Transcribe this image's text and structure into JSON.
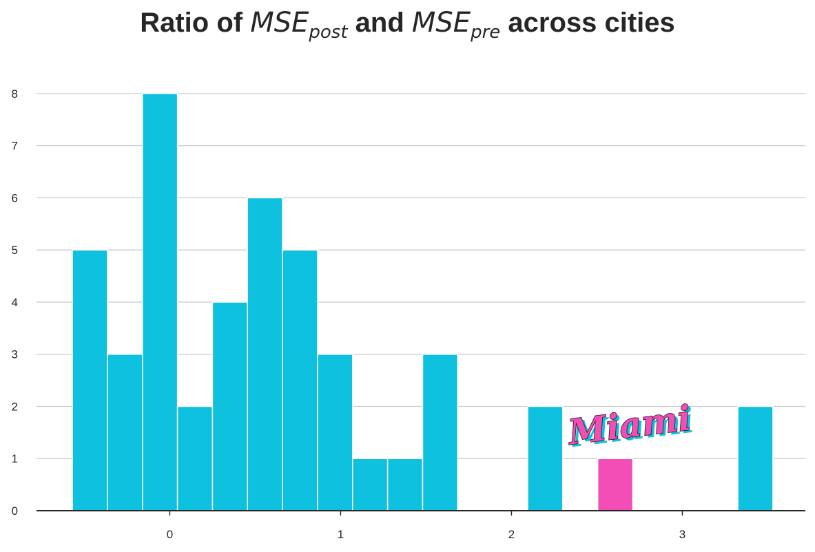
{
  "title": {
    "prefix": "Ratio of ",
    "mse1_base": "MSE",
    "mse1_sub": "post",
    "middle": " and ",
    "mse2_base": "MSE",
    "mse2_sub": "pre",
    "suffix": " across cities"
  },
  "chart_data": {
    "type": "bar",
    "title": "Ratio of MSE_post and MSE_pre across cities",
    "xlabel": "",
    "ylabel": "",
    "xlim": [
      -0.78,
      3.72
    ],
    "ylim": [
      0,
      8.5
    ],
    "xticks": [
      0,
      1,
      2,
      3
    ],
    "yticks": [
      0,
      1,
      2,
      3,
      4,
      5,
      6,
      7,
      8
    ],
    "grid": "horizontal",
    "bin_width": 0.205,
    "bins": [
      {
        "left": -0.57,
        "count": 5
      },
      {
        "left": -0.365,
        "count": 3
      },
      {
        "left": -0.16,
        "count": 8
      },
      {
        "left": 0.045,
        "count": 2
      },
      {
        "left": 0.25,
        "count": 4
      },
      {
        "left": 0.455,
        "count": 6
      },
      {
        "left": 0.66,
        "count": 5
      },
      {
        "left": 0.865,
        "count": 3
      },
      {
        "left": 1.07,
        "count": 1
      },
      {
        "left": 1.275,
        "count": 1
      },
      {
        "left": 1.48,
        "count": 3
      },
      {
        "left": 1.685,
        "count": 0
      },
      {
        "left": 1.89,
        "count": 0
      },
      {
        "left": 2.095,
        "count": 2
      },
      {
        "left": 2.3,
        "count": 0
      },
      {
        "left": 2.505,
        "count": 1,
        "highlight": true
      },
      {
        "left": 2.71,
        "count": 0
      },
      {
        "left": 2.915,
        "count": 0
      },
      {
        "left": 3.12,
        "count": 0
      },
      {
        "left": 3.325,
        "count": 2
      }
    ],
    "colors": {
      "bar": "#0dc1df",
      "highlight": "#f24eb6",
      "grid": "#cccccc",
      "axis": "#262626"
    },
    "annotation": {
      "text": "Miami",
      "x": 2.7,
      "y": 1.6,
      "color": "#f24eb6",
      "shadow_color": "#0dc1df"
    }
  }
}
